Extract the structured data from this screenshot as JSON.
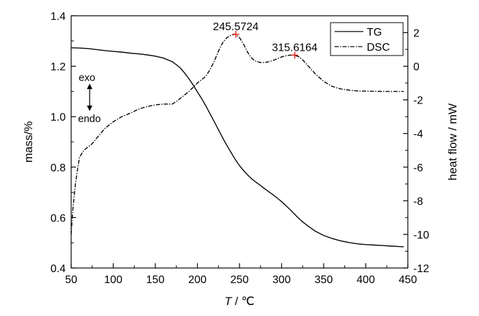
{
  "chart_data": {
    "type": "line",
    "x_label_italic": "T",
    "x_label_rest": " / ℃",
    "y_left_label": "mass/%",
    "y_right_label": "heat flow / mW",
    "x_ticks": [
      "50",
      "100",
      "150",
      "200",
      "250",
      "300",
      "350",
      "400",
      "450"
    ],
    "y_left_ticks": [
      "0.4",
      "0.6",
      "0.8",
      "1.0",
      "1.2",
      "1.4"
    ],
    "y_right_ticks": [
      "-12",
      "-10",
      "-8",
      "-6",
      "-4",
      "-2",
      "0",
      "2"
    ],
    "xlim": [
      50,
      450
    ],
    "y_left_lim": [
      0.4,
      1.4
    ],
    "y_right_lim": [
      -12,
      3
    ],
    "legend_position": "top-right",
    "series": [
      {
        "name": "TG",
        "axis": "left",
        "style": "solid",
        "x": [
          50,
          60,
          70,
          80,
          90,
          100,
          110,
          120,
          130,
          140,
          150,
          160,
          170,
          175,
          180,
          185,
          190,
          195,
          200,
          205,
          210,
          215,
          220,
          225,
          230,
          235,
          240,
          245,
          250,
          255,
          260,
          265,
          270,
          275,
          280,
          285,
          290,
          295,
          300,
          305,
          310,
          315,
          320,
          325,
          330,
          340,
          350,
          360,
          370,
          380,
          390,
          400,
          410,
          420,
          430,
          440,
          445
        ],
        "y": [
          1.273,
          1.272,
          1.27,
          1.266,
          1.262,
          1.259,
          1.256,
          1.252,
          1.249,
          1.245,
          1.24,
          1.232,
          1.218,
          1.206,
          1.192,
          1.172,
          1.15,
          1.125,
          1.098,
          1.072,
          1.043,
          1.012,
          0.98,
          0.948,
          0.916,
          0.886,
          0.858,
          0.83,
          0.806,
          0.786,
          0.768,
          0.752,
          0.739,
          0.727,
          0.714,
          0.702,
          0.69,
          0.677,
          0.663,
          0.648,
          0.632,
          0.615,
          0.598,
          0.583,
          0.57,
          0.546,
          0.529,
          0.517,
          0.508,
          0.501,
          0.496,
          0.493,
          0.491,
          0.489,
          0.487,
          0.485,
          0.484
        ]
      },
      {
        "name": "DSC",
        "axis": "right",
        "style": "dash-dot",
        "x": [
          50,
          52,
          55,
          58,
          60,
          65,
          70,
          75,
          80,
          90,
          100,
          110,
          120,
          130,
          140,
          150,
          160,
          170,
          175,
          180,
          190,
          200,
          210,
          215,
          220,
          225,
          230,
          235,
          240,
          245,
          250,
          255,
          260,
          265,
          270,
          275,
          280,
          285,
          290,
          295,
          300,
          305,
          310,
          315,
          320,
          325,
          330,
          340,
          350,
          360,
          370,
          380,
          390,
          400,
          410,
          420,
          430,
          440,
          445
        ],
        "y": [
          -10.0,
          -8.5,
          -7.0,
          -6.0,
          -5.4,
          -5.0,
          -4.8,
          -4.6,
          -4.3,
          -3.7,
          -3.3,
          -3.0,
          -2.8,
          -2.55,
          -2.4,
          -2.3,
          -2.25,
          -2.25,
          -2.1,
          -1.9,
          -1.5,
          -1.0,
          -0.6,
          -0.2,
          0.3,
          0.9,
          1.4,
          1.7,
          1.85,
          1.9,
          1.7,
          1.3,
          0.8,
          0.45,
          0.28,
          0.22,
          0.22,
          0.27,
          0.35,
          0.45,
          0.55,
          0.62,
          0.66,
          0.66,
          0.58,
          0.38,
          0.1,
          -0.45,
          -0.9,
          -1.2,
          -1.35,
          -1.42,
          -1.47,
          -1.48,
          -1.49,
          -1.5,
          -1.5,
          -1.5,
          -1.5
        ]
      }
    ],
    "peaks": [
      {
        "label": "245.5724",
        "x": 245.5724,
        "y": 1.9
      },
      {
        "label": "315.6164",
        "x": 315.6164,
        "y": 0.66
      }
    ],
    "direction_note": {
      "top": "exo",
      "bottom": "endo"
    },
    "colors": {
      "line": "#000000",
      "peak_marker": "#e8241c"
    }
  }
}
